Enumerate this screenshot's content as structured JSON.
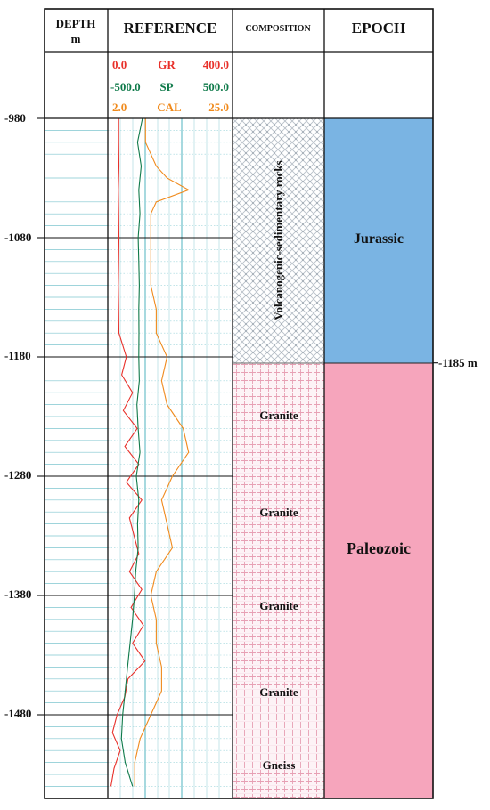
{
  "headers": {
    "depth": "DEPTH",
    "depth_unit": "m",
    "reference": "REFERENCE",
    "composition": "COMPOSITION",
    "epoch": "EPOCH"
  },
  "scales": {
    "gr": {
      "min": "0.0",
      "name": "GR",
      "max": "400.0",
      "color": "#e8302a"
    },
    "sp": {
      "min": "-500.0",
      "name": "SP",
      "max": "500.0",
      "color": "#0f7a4a"
    },
    "cal": {
      "min": "2.0",
      "name": "CAL",
      "max": "25.0",
      "color": "#f08a1c"
    }
  },
  "depth_ticks": [
    "-980",
    "-1080",
    "-1180",
    "-1280",
    "-1380",
    "-1480"
  ],
  "boundary": {
    "label": "-1185 m",
    "depth": -1185
  },
  "composition": {
    "volcanic_label": "Volcanogenic-sedimentary rocks",
    "granite_labels": [
      "Granite",
      "Granite",
      "Granite",
      "Granite"
    ],
    "gneiss_label": "Gneiss"
  },
  "epochs": {
    "upper": {
      "label": "Jurassic",
      "color": "#7ab4e3"
    },
    "lower": {
      "label": "Paleozoic",
      "color": "#f6a5bc"
    }
  },
  "chart_data": {
    "type": "line",
    "depth_range": [
      -980,
      -1545
    ],
    "series": [
      {
        "name": "GR",
        "scale": [
          0,
          400
        ],
        "depth": [
          -980,
          -1000,
          -1020,
          -1040,
          -1060,
          -1080,
          -1100,
          -1120,
          -1140,
          -1160,
          -1180,
          -1195,
          -1210,
          -1225,
          -1240,
          -1255,
          -1270,
          -1285,
          -1300,
          -1315,
          -1330,
          -1345,
          -1360,
          -1375,
          -1390,
          -1405,
          -1420,
          -1435,
          -1450,
          -1465,
          -1480,
          -1495,
          -1510,
          -1525,
          -1540
        ],
        "values": [
          35,
          35,
          36,
          34,
          35,
          36,
          35,
          34,
          35,
          36,
          60,
          45,
          80,
          50,
          95,
          55,
          100,
          60,
          110,
          70,
          85,
          100,
          70,
          110,
          75,
          115,
          80,
          120,
          65,
          55,
          30,
          15,
          40,
          20,
          10
        ]
      },
      {
        "name": "SP",
        "scale": [
          -500,
          500
        ],
        "depth": [
          -980,
          -1000,
          -1020,
          -1040,
          -1060,
          -1080,
          -1100,
          -1120,
          -1140,
          -1160,
          -1180,
          -1200,
          -1220,
          -1240,
          -1260,
          -1280,
          -1300,
          -1320,
          -1340,
          -1360,
          -1380,
          -1400,
          -1420,
          -1440,
          -1460,
          -1480,
          -1500,
          -1520,
          -1540
        ],
        "values": [
          -220,
          -260,
          -230,
          -250,
          -240,
          -255,
          -250,
          -245,
          -250,
          -248,
          -250,
          -245,
          -265,
          -255,
          -240,
          -270,
          -250,
          -260,
          -255,
          -275,
          -285,
          -300,
          -320,
          -340,
          -360,
          -380,
          -390,
          -360,
          -300
        ]
      },
      {
        "name": "CAL",
        "scale": [
          2,
          25
        ],
        "depth": [
          -980,
          -1000,
          -1020,
          -1030,
          -1040,
          -1050,
          -1060,
          -1080,
          -1100,
          -1120,
          -1140,
          -1160,
          -1180,
          -1200,
          -1220,
          -1240,
          -1260,
          -1280,
          -1300,
          -1320,
          -1340,
          -1360,
          -1380,
          -1400,
          -1420,
          -1440,
          -1460,
          -1480,
          -1500,
          -1520,
          -1540
        ],
        "values": [
          9,
          9,
          11,
          13,
          17,
          11,
          10,
          10,
          10,
          10,
          11,
          11,
          13,
          12,
          13,
          16,
          17,
          14,
          12,
          13,
          14,
          11,
          10,
          11,
          11,
          12,
          12,
          10,
          8,
          7,
          7
        ]
      }
    ]
  }
}
